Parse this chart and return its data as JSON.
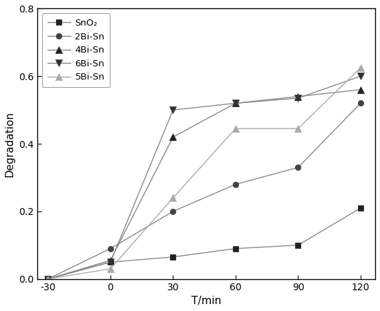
{
  "x": [
    -30,
    0,
    30,
    60,
    90,
    120
  ],
  "series": [
    {
      "label": "SnO₂",
      "values": [
        0.0,
        0.05,
        0.065,
        0.09,
        0.1,
        0.21
      ],
      "line_color": "#888888",
      "marker_color": "#222222",
      "marker": "s",
      "markersize": 6
    },
    {
      "label": "2Bi-Sn",
      "values": [
        0.0,
        0.09,
        0.2,
        0.28,
        0.33,
        0.52
      ],
      "line_color": "#888888",
      "marker_color": "#444444",
      "marker": "o",
      "markersize": 6
    },
    {
      "label": "4Bi-Sn",
      "values": [
        0.0,
        0.055,
        0.42,
        0.52,
        0.54,
        0.56
      ],
      "line_color": "#888888",
      "marker_color": "#222222",
      "marker": "^",
      "markersize": 7
    },
    {
      "label": "6Bi-Sn",
      "values": [
        0.0,
        0.05,
        0.5,
        0.52,
        0.535,
        0.6
      ],
      "line_color": "#888888",
      "marker_color": "#333333",
      "marker": "v",
      "markersize": 7
    },
    {
      "label": "5Bi-Sn",
      "values": [
        0.0,
        0.03,
        0.24,
        0.445,
        0.445,
        0.625
      ],
      "line_color": "#aaaaaa",
      "marker_color": "#aaaaaa",
      "marker": "^",
      "markersize": 7
    }
  ],
  "xlabel": "T/min",
  "ylabel": "Degradation",
  "xlim": [
    -35,
    127
  ],
  "ylim": [
    0.0,
    0.8
  ],
  "xticks": [
    -30,
    0,
    30,
    60,
    90,
    120
  ],
  "yticks": [
    0.0,
    0.2,
    0.4,
    0.6,
    0.8
  ],
  "legend_loc": "upper left",
  "background_color": "#ffffff"
}
